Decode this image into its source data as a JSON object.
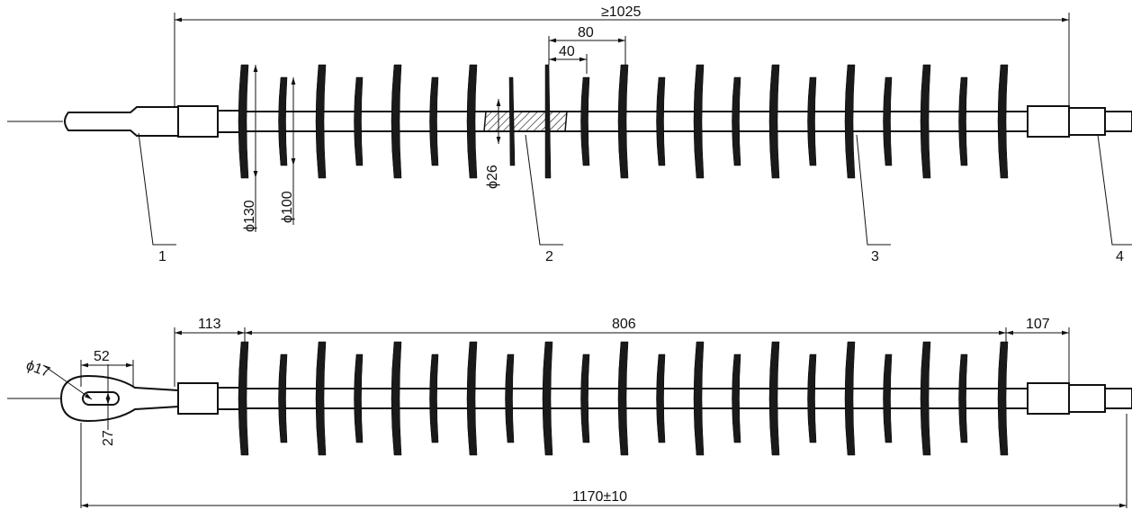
{
  "top_view": {
    "overall_length": "≥1025",
    "shed_spacing": "80",
    "shed_half_spacing": "40",
    "large_shed_diameter": "ϕ130",
    "small_shed_diameter": "ϕ100",
    "core_diameter": "ϕ26",
    "callouts": [
      "1",
      "2",
      "3",
      "4"
    ]
  },
  "bottom_view": {
    "left_fitting_length": "113",
    "shed_section_length": "806",
    "right_fitting_length": "107",
    "eye_width": "52",
    "eye_hole_diameter": "ϕ17",
    "eye_slot_height": "27",
    "total_length": "1170±10"
  }
}
